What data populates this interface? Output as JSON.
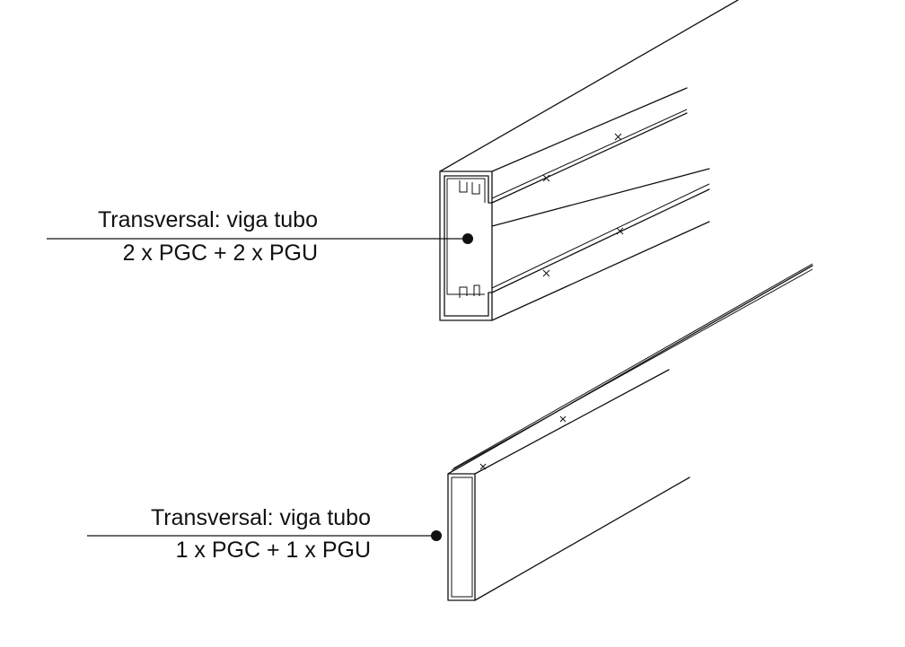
{
  "callouts": [
    {
      "line1": "Transversal: viga tubo",
      "line2": "2 x PGC + 2 x PGU"
    },
    {
      "line1": "Transversal: viga tubo",
      "line2": "1 x PGC + 1 x PGU"
    }
  ],
  "colors": {
    "line": "#111111",
    "background": "#ffffff"
  }
}
